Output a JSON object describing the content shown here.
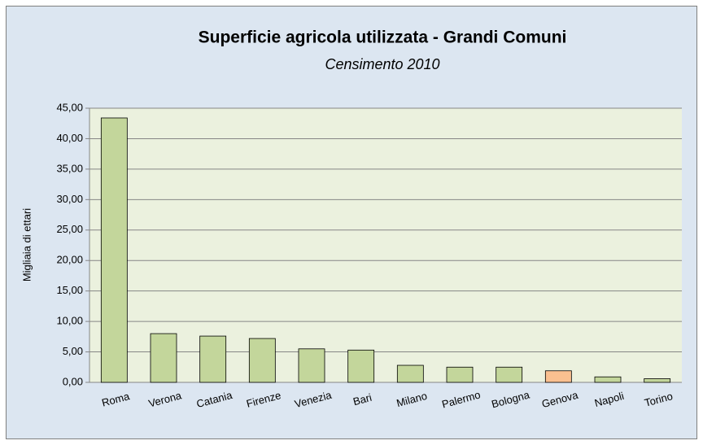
{
  "chart_data": {
    "type": "bar",
    "title": "Superficie agricola utilizzata - Grandi Comuni",
    "subtitle": "Censimento 2010",
    "y_label": "Migliaia di ettari",
    "categories": [
      "Roma",
      "Verona",
      "Catania",
      "Firenze",
      "Venezia",
      "Bari",
      "Milano",
      "Palermo",
      "Bologna",
      "Genova",
      "Napoli",
      "Torino"
    ],
    "values": [
      43.4,
      8.0,
      7.6,
      7.2,
      5.5,
      5.3,
      2.8,
      2.5,
      2.5,
      1.9,
      0.9,
      0.6
    ],
    "colors": [
      "#c3d69b",
      "#c3d69b",
      "#c3d69b",
      "#c3d69b",
      "#c3d69b",
      "#c3d69b",
      "#c3d69b",
      "#c3d69b",
      "#c3d69b",
      "#fac090",
      "#c3d69b",
      "#c3d69b"
    ],
    "ylim": [
      0,
      45
    ],
    "yticks": [
      {
        "value": 0,
        "label": "0,00"
      },
      {
        "value": 5,
        "label": "5,00"
      },
      {
        "value": 10,
        "label": "10,00"
      },
      {
        "value": 15,
        "label": "15,00"
      },
      {
        "value": 20,
        "label": "20,00"
      },
      {
        "value": 25,
        "label": "25,00"
      },
      {
        "value": 30,
        "label": "30,00"
      },
      {
        "value": 35,
        "label": "35,00"
      },
      {
        "value": 40,
        "label": "40,00"
      },
      {
        "value": 45,
        "label": "45,00"
      }
    ],
    "grid": true
  }
}
